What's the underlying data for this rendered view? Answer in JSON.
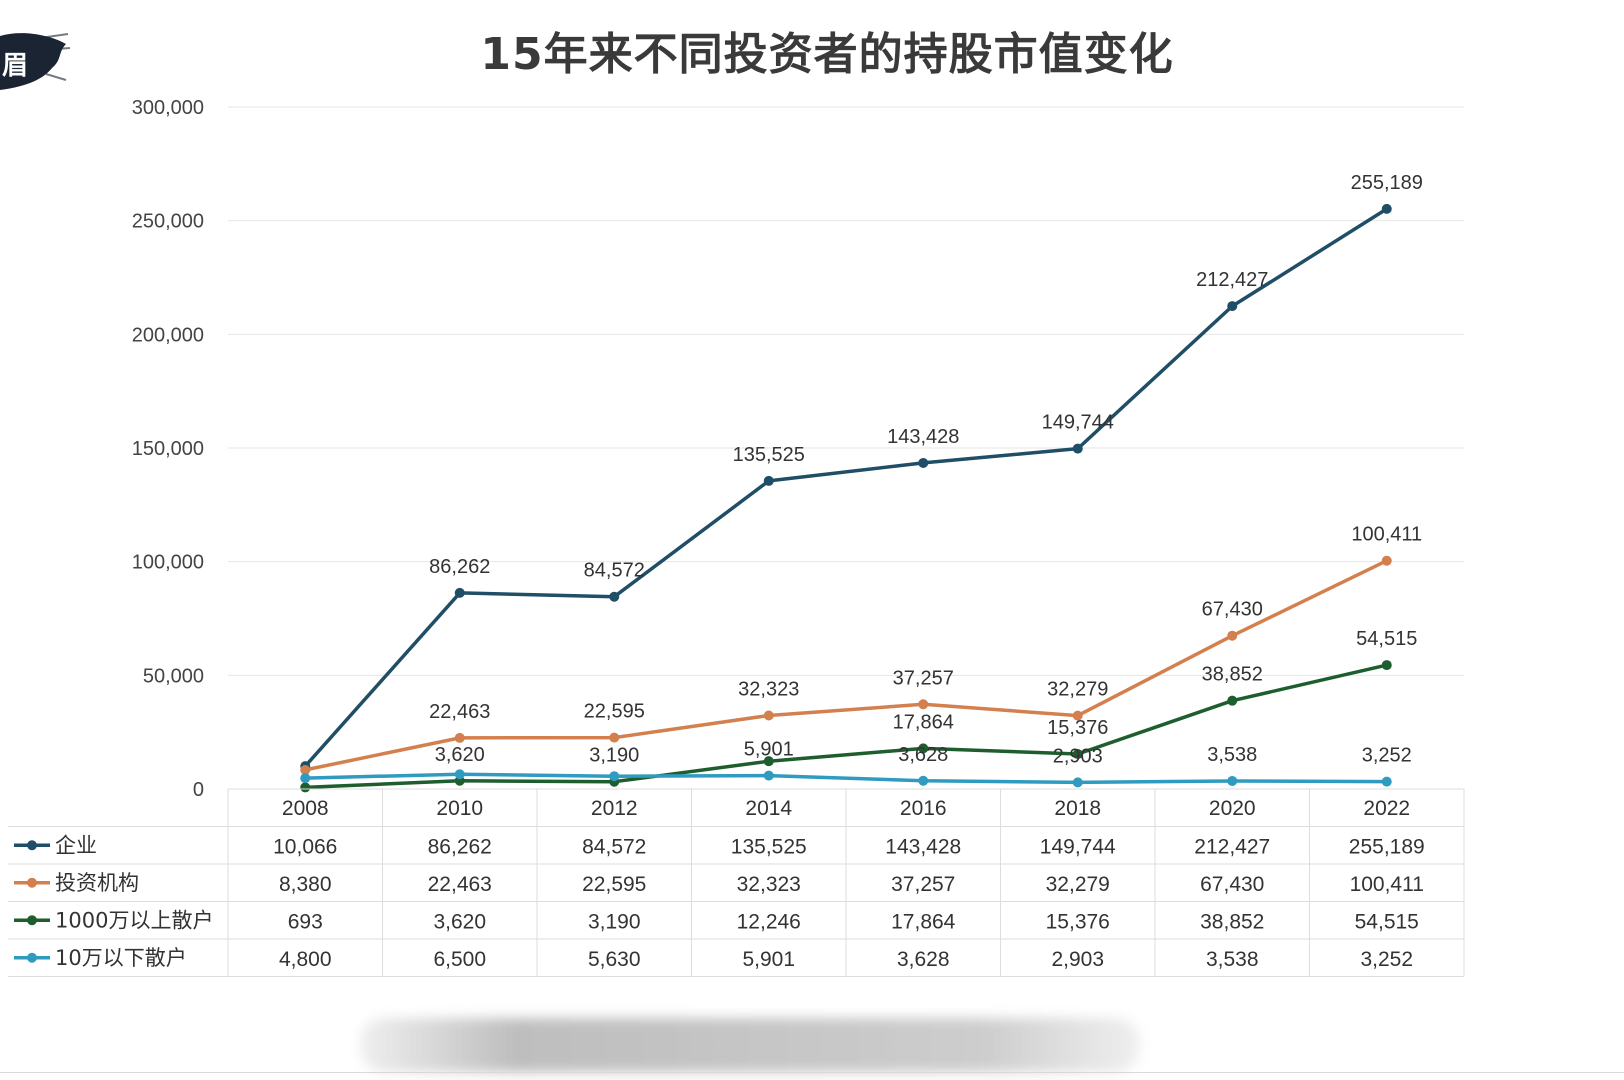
{
  "title": "15年来不同投资者的持股市值变化",
  "corner_badge": "眉",
  "chart_data": {
    "type": "line",
    "title": "15年来不同投资者的持股市值变化",
    "x": [
      "2008",
      "2010",
      "2012",
      "2014",
      "2016",
      "2018",
      "2020",
      "2022"
    ],
    "ylim": [
      0,
      300000
    ],
    "yticks": [
      0,
      50000,
      100000,
      150000,
      200000,
      250000,
      300000
    ],
    "ytick_labels": [
      "0",
      "50,000",
      "100,000",
      "150,000",
      "200,000",
      "250,000",
      "300,000"
    ],
    "grid": true,
    "legend": "data-table-left",
    "series": [
      {
        "name": "企业",
        "color": "#1f4e66",
        "values": [
          10066,
          86262,
          84572,
          135525,
          143428,
          149744,
          212427,
          255189
        ],
        "labels": [
          "10,066",
          "86,262",
          "84,572",
          "135,525",
          "143,428",
          "149,744",
          "212,427",
          "255,189"
        ]
      },
      {
        "name": "投资机构",
        "color": "#d4804e",
        "values": [
          8380,
          22463,
          22595,
          32323,
          37257,
          32279,
          67430,
          100411
        ],
        "labels": [
          "8,380",
          "22,463",
          "22,595",
          "32,323",
          "37,257",
          "32,279",
          "67,430",
          "100,411"
        ]
      },
      {
        "name": "1000万以上散户",
        "color": "#1e5e2e",
        "values": [
          693,
          3620,
          3190,
          12246,
          17864,
          15376,
          38852,
          54515
        ],
        "labels": [
          "693",
          "3,620",
          "3,190",
          "12,246",
          "17,864",
          "15,376",
          "38,852",
          "54,515"
        ]
      },
      {
        "name": "10万以下散户",
        "color": "#2f9bc0",
        "values": [
          4800,
          6500,
          5630,
          5901,
          3628,
          2903,
          3538,
          3252
        ],
        "labels": [
          "4,800",
          "6,500",
          "5,630",
          "5,901",
          "3,628",
          "2,903",
          "3,538",
          "3,252"
        ]
      }
    ],
    "point_labels": [
      {
        "series": 0,
        "index": 1,
        "text": "86,262"
      },
      {
        "series": 0,
        "index": 2,
        "text": "84,572"
      },
      {
        "series": 0,
        "index": 3,
        "text": "135,525"
      },
      {
        "series": 0,
        "index": 4,
        "text": "143,428"
      },
      {
        "series": 0,
        "index": 5,
        "text": "149,744"
      },
      {
        "series": 0,
        "index": 6,
        "text": "212,427"
      },
      {
        "series": 0,
        "index": 7,
        "text": "255,189"
      },
      {
        "series": 1,
        "index": 1,
        "text": "22,463"
      },
      {
        "series": 1,
        "index": 2,
        "text": "22,595"
      },
      {
        "series": 1,
        "index": 3,
        "text": "32,323"
      },
      {
        "series": 1,
        "index": 4,
        "text": "37,257"
      },
      {
        "series": 1,
        "index": 5,
        "text": "32,279"
      },
      {
        "series": 1,
        "index": 6,
        "text": "67,430"
      },
      {
        "series": 1,
        "index": 7,
        "text": "100,411"
      },
      {
        "series": 2,
        "index": 1,
        "text": "3,620"
      },
      {
        "series": 2,
        "index": 2,
        "text": "3,190"
      },
      {
        "series": 2,
        "index": 4,
        "text": "17,864"
      },
      {
        "series": 2,
        "index": 5,
        "text": "15,376"
      },
      {
        "series": 2,
        "index": 6,
        "text": "38,852"
      },
      {
        "series": 2,
        "index": 7,
        "text": "54,515"
      },
      {
        "series": 3,
        "index": 3,
        "text": "5,901"
      },
      {
        "series": 3,
        "index": 4,
        "text": "3,628"
      },
      {
        "series": 3,
        "index": 5,
        "text": "2,903"
      },
      {
        "series": 3,
        "index": 6,
        "text": "3,538"
      },
      {
        "series": 3,
        "index": 7,
        "text": "3,252"
      }
    ]
  }
}
